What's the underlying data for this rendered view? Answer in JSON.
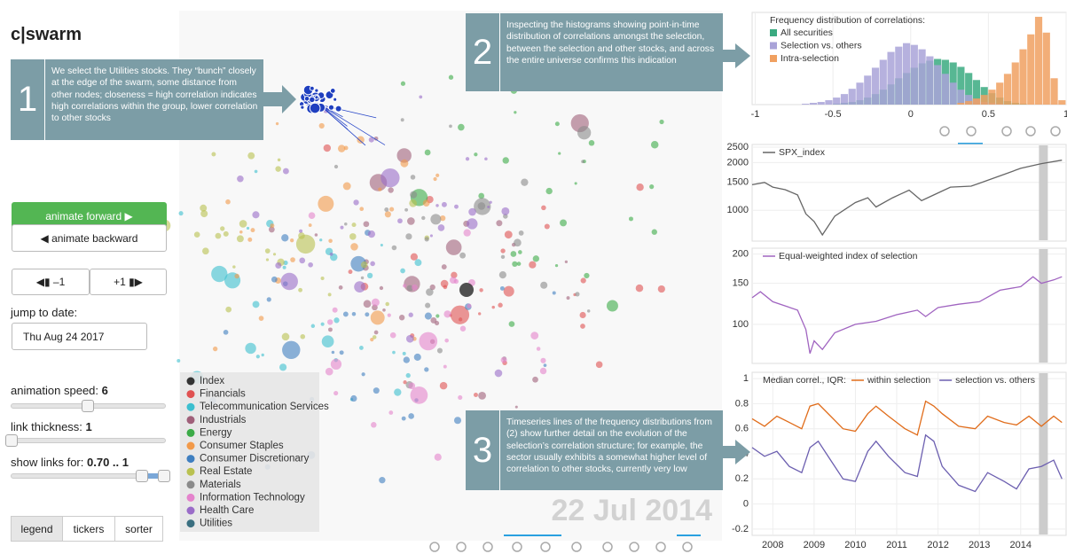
{
  "app": {
    "title": "c|swarm"
  },
  "callouts": [
    {
      "number": "1",
      "text": "We select the Utilities stocks.  They “bunch” closely at the edge of the swarm, some distance from other nodes; closeness = high correlation indicates high correlations within the group, lower correlation to other stocks"
    },
    {
      "number": "2",
      "text": "Inspecting the histograms showing point-in-time distribution of correlations amongst the selection, between the selection and other stocks, and across the entire universe confirms this indication"
    },
    {
      "number": "3",
      "text": "Timeseries lines of the frequency distributions from (2) show further detail on the evolution of the selection’s correlation structure; for example, the sector usually exhibits a somewhat higher level of correlation to other stocks, currently very low"
    }
  ],
  "controls": {
    "animate_forward": "animate forward ▶",
    "animate_backward": "◀ animate backward",
    "step_back": "◀▮ –1",
    "step_forward": "+1 ▮▶",
    "jump_label": "jump to date:",
    "date_input": "Thu Aug 24 2017",
    "sliders": [
      {
        "label": "animation speed:",
        "value": 6
      },
      {
        "label": "link thickness:",
        "value": 1
      },
      {
        "label": "show links for:",
        "value": "0.70 .. 1"
      }
    ],
    "tabs": [
      "legend",
      "tickers",
      "sorter"
    ]
  },
  "swarm": {
    "date": "22 Jul 2014",
    "legend": [
      {
        "name": "Index",
        "color": "#333333"
      },
      {
        "name": "Financials",
        "color": "#e05252"
      },
      {
        "name": "Telecommunication Services",
        "color": "#3cbfcf"
      },
      {
        "name": "Industrials",
        "color": "#a0607a"
      },
      {
        "name": "Energy",
        "color": "#3cab48"
      },
      {
        "name": "Consumer Staples",
        "color": "#f29a4a"
      },
      {
        "name": "Consumer Discretionary",
        "color": "#3f7fc0"
      },
      {
        "name": "Real Estate",
        "color": "#b9c150"
      },
      {
        "name": "Materials",
        "color": "#8a8a8a"
      },
      {
        "name": "Information Technology",
        "color": "#e483cc"
      },
      {
        "name": "Health Care",
        "color": "#9a6cc8"
      },
      {
        "name": "Utilities",
        "color": "#3a6f80"
      }
    ]
  },
  "chart_data": [
    {
      "type": "histogram",
      "title": "Frequency distribution of correlations:",
      "bins": [
        -1,
        -0.95,
        -0.9,
        -0.85,
        -0.8,
        -0.75,
        -0.7,
        -0.65,
        -0.6,
        -0.55,
        -0.5,
        -0.45,
        -0.4,
        -0.35,
        -0.3,
        -0.25,
        -0.2,
        -0.15,
        -0.1,
        -0.05,
        0,
        0.05,
        0.1,
        0.15,
        0.2,
        0.25,
        0.3,
        0.35,
        0.4,
        0.45,
        0.5,
        0.55,
        0.6,
        0.65,
        0.7,
        0.75,
        0.8,
        0.85,
        0.9,
        0.95,
        1
      ],
      "series": [
        {
          "name": "All securities",
          "color": "#3aaa80",
          "values": [
            0,
            0,
            0,
            0,
            0,
            0,
            0,
            0,
            0,
            0,
            1,
            2,
            3,
            5,
            8,
            12,
            17,
            23,
            30,
            36,
            42,
            47,
            50,
            52,
            51,
            48,
            43,
            36,
            28,
            20,
            13,
            8,
            4,
            2,
            1,
            0,
            0,
            0,
            0,
            0
          ]
        },
        {
          "name": "Selection vs. others",
          "color": "#a9a3d8",
          "values": [
            0,
            0,
            0,
            0,
            0,
            0,
            1,
            2,
            3,
            5,
            8,
            12,
            18,
            25,
            33,
            42,
            51,
            60,
            66,
            70,
            68,
            63,
            55,
            45,
            35,
            25,
            17,
            11,
            6,
            3,
            2,
            1,
            0,
            0,
            0,
            0,
            0,
            0,
            0,
            0
          ]
        },
        {
          "name": "Intra-selection",
          "color": "#f0a060",
          "values": [
            0,
            0,
            0,
            0,
            0,
            0,
            0,
            0,
            0,
            0,
            0,
            0,
            0,
            0,
            0,
            0,
            0,
            0,
            0,
            0,
            0,
            0,
            0,
            0,
            0,
            0,
            2,
            4,
            7,
            11,
            17,
            25,
            35,
            48,
            63,
            80,
            100,
            82,
            30,
            5
          ]
        }
      ],
      "xlim": [
        -1.02,
        1.0
      ],
      "xticks": [
        -1,
        -0.5,
        0,
        0.5,
        1
      ],
      "ylim": [
        0,
        105
      ],
      "grid": true
    },
    {
      "type": "line",
      "log_y": true,
      "x": [
        2007.5,
        2007.8,
        2008.0,
        2008.3,
        2008.6,
        2008.8,
        2009.0,
        2009.2,
        2009.5,
        2010.0,
        2010.3,
        2010.5,
        2010.9,
        2011.3,
        2011.6,
        2011.9,
        2012.3,
        2012.8,
        2013.0,
        2013.5,
        2014.0,
        2014.5,
        2015.0
      ],
      "series": [
        {
          "name": "SPX_index",
          "color": "#666666",
          "values": [
            1450,
            1500,
            1400,
            1350,
            1250,
            950,
            850,
            700,
            920,
            1120,
            1200,
            1050,
            1200,
            1340,
            1150,
            1250,
            1400,
            1420,
            1480,
            1650,
            1840,
            1970,
            2070
          ]
        }
      ],
      "xlim": [
        2007.5,
        2015.1
      ],
      "ylim": [
        640,
        2600
      ],
      "yticks": [
        1000,
        1500,
        2000,
        2500
      ],
      "grid": true,
      "highlight_x": 2014.55
    },
    {
      "type": "line",
      "log_y": true,
      "x": [
        2007.5,
        2007.7,
        2008.0,
        2008.3,
        2008.6,
        2008.8,
        2008.9,
        2009.0,
        2009.2,
        2009.5,
        2010.0,
        2010.5,
        2011.0,
        2011.5,
        2011.7,
        2012.0,
        2012.5,
        2013.0,
        2013.5,
        2014.0,
        2014.3,
        2014.5,
        2014.8,
        2015.0
      ],
      "series": [
        {
          "name": "Equal-weighted index of selection",
          "color": "#a064c0",
          "values": [
            130,
            138,
            125,
            120,
            115,
            95,
            75,
            85,
            78,
            92,
            100,
            103,
            110,
            115,
            108,
            118,
            122,
            125,
            140,
            145,
            160,
            150,
            155,
            160
          ]
        }
      ],
      "xlim": [
        2007.5,
        2015.1
      ],
      "ylim": [
        68,
        212
      ],
      "yticks": [
        100,
        150,
        200
      ],
      "grid": true,
      "highlight_x": 2014.55
    },
    {
      "type": "line",
      "title": "Median correl., IQR:",
      "x": [
        2007.5,
        2007.8,
        2008.1,
        2008.4,
        2008.7,
        2008.9,
        2009.1,
        2009.4,
        2009.7,
        2010.0,
        2010.3,
        2010.5,
        2010.8,
        2011.2,
        2011.5,
        2011.7,
        2011.9,
        2012.1,
        2012.5,
        2012.9,
        2013.2,
        2013.6,
        2013.9,
        2014.2,
        2014.5,
        2014.8,
        2015.0
      ],
      "series": [
        {
          "name": "within selection",
          "color": "#e06c1a",
          "values": [
            0.68,
            0.62,
            0.7,
            0.65,
            0.6,
            0.78,
            0.8,
            0.7,
            0.6,
            0.58,
            0.72,
            0.78,
            0.7,
            0.6,
            0.55,
            0.82,
            0.78,
            0.72,
            0.62,
            0.6,
            0.7,
            0.65,
            0.63,
            0.7,
            0.62,
            0.7,
            0.65
          ]
        },
        {
          "name": "selection vs. others",
          "color": "#6c5fb0",
          "values": [
            0.45,
            0.38,
            0.42,
            0.3,
            0.25,
            0.45,
            0.5,
            0.35,
            0.2,
            0.18,
            0.42,
            0.5,
            0.38,
            0.25,
            0.22,
            0.55,
            0.5,
            0.3,
            0.15,
            0.1,
            0.25,
            0.18,
            0.12,
            0.28,
            0.3,
            0.35,
            0.2
          ]
        }
      ],
      "xlim": [
        2007.5,
        2015.1
      ],
      "ylim": [
        -0.25,
        1.05
      ],
      "yticks": [
        -0.2,
        0,
        0.2,
        0.4,
        0.6,
        0.8,
        1
      ],
      "xticks": [
        2008,
        2009,
        2010,
        2011,
        2012,
        2013,
        2014
      ],
      "grid": true,
      "highlight_x": 2014.55
    }
  ]
}
